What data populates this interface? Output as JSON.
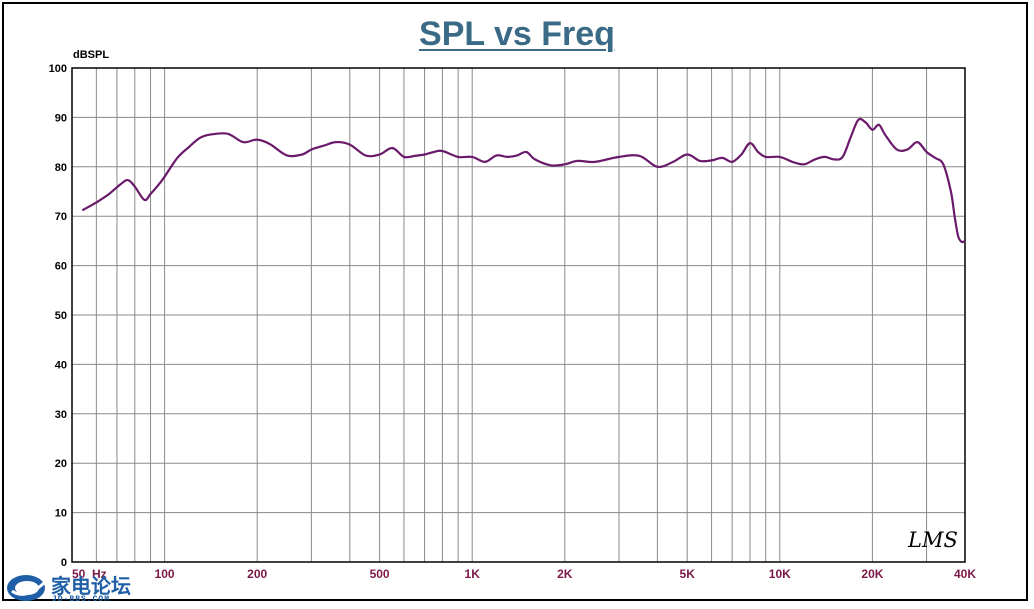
{
  "chart_data": {
    "type": "line",
    "title": "SPL vs Freq",
    "xlabel": "",
    "ylabel": "dBSPL",
    "xscale": "log",
    "xlim": [
      50,
      40000
    ],
    "ylim": [
      0,
      100
    ],
    "yticks": [
      0,
      10,
      20,
      30,
      40,
      50,
      60,
      70,
      80,
      90,
      100
    ],
    "xticks": [
      {
        "value": 50,
        "label": "50  Hz"
      },
      {
        "value": 100,
        "label": "100"
      },
      {
        "value": 200,
        "label": "200"
      },
      {
        "value": 500,
        "label": "500"
      },
      {
        "value": 1000,
        "label": "1K"
      },
      {
        "value": 2000,
        "label": "2K"
      },
      {
        "value": 5000,
        "label": "5K"
      },
      {
        "value": 10000,
        "label": "10K"
      },
      {
        "value": 20000,
        "label": "20K"
      },
      {
        "value": 40000,
        "label": "40K"
      }
    ],
    "grid": true,
    "line_color": "#6a1a6a",
    "series": [
      {
        "x": [
          54,
          60,
          66,
          72,
          76,
          80,
          86,
          90,
          96,
          100,
          110,
          120,
          130,
          140,
          160,
          180,
          200,
          220,
          250,
          280,
          300,
          330,
          360,
          400,
          450,
          500,
          550,
          600,
          650,
          700,
          750,
          800,
          900,
          1000,
          1100,
          1200,
          1300,
          1400,
          1500,
          1600,
          1800,
          2000,
          2200,
          2500,
          3000,
          3500,
          4000,
          4500,
          5000,
          5500,
          6000,
          6500,
          7000,
          7500,
          8000,
          8500,
          9000,
          10000,
          11000,
          12000,
          13000,
          14000,
          15000,
          16000,
          17000,
          18000,
          19000,
          20000,
          21000,
          22000,
          24000,
          26000,
          28000,
          30000,
          32000,
          34000,
          36000,
          37000,
          38000,
          39000,
          40000
        ],
        "y": [
          71.2,
          72.8,
          74.5,
          76.5,
          77.3,
          76.0,
          73.3,
          74.5,
          76.5,
          78.0,
          81.8,
          84.0,
          85.8,
          86.5,
          86.7,
          85.0,
          85.5,
          84.6,
          82.3,
          82.5,
          83.5,
          84.3,
          85.0,
          84.5,
          82.3,
          82.5,
          83.8,
          82.0,
          82.2,
          82.5,
          83.0,
          83.2,
          82.0,
          82.0,
          81.0,
          82.3,
          82.0,
          82.3,
          83.0,
          81.5,
          80.3,
          80.5,
          81.2,
          81.0,
          82.0,
          82.2,
          80.0,
          81.0,
          82.5,
          81.2,
          81.3,
          81.8,
          81.0,
          82.5,
          84.8,
          83.0,
          82.0,
          82.0,
          81.0,
          80.5,
          81.5,
          82.0,
          81.5,
          82.0,
          86.0,
          89.5,
          89.0,
          87.5,
          88.5,
          86.5,
          83.5,
          83.5,
          85.0,
          83.0,
          81.8,
          80.5,
          75.0,
          70.0,
          66.0,
          64.8,
          65.0
        ]
      }
    ]
  },
  "watermark": {
    "text": "家电论坛",
    "sub": "JD-BBS.COM"
  },
  "signature": "LMS"
}
